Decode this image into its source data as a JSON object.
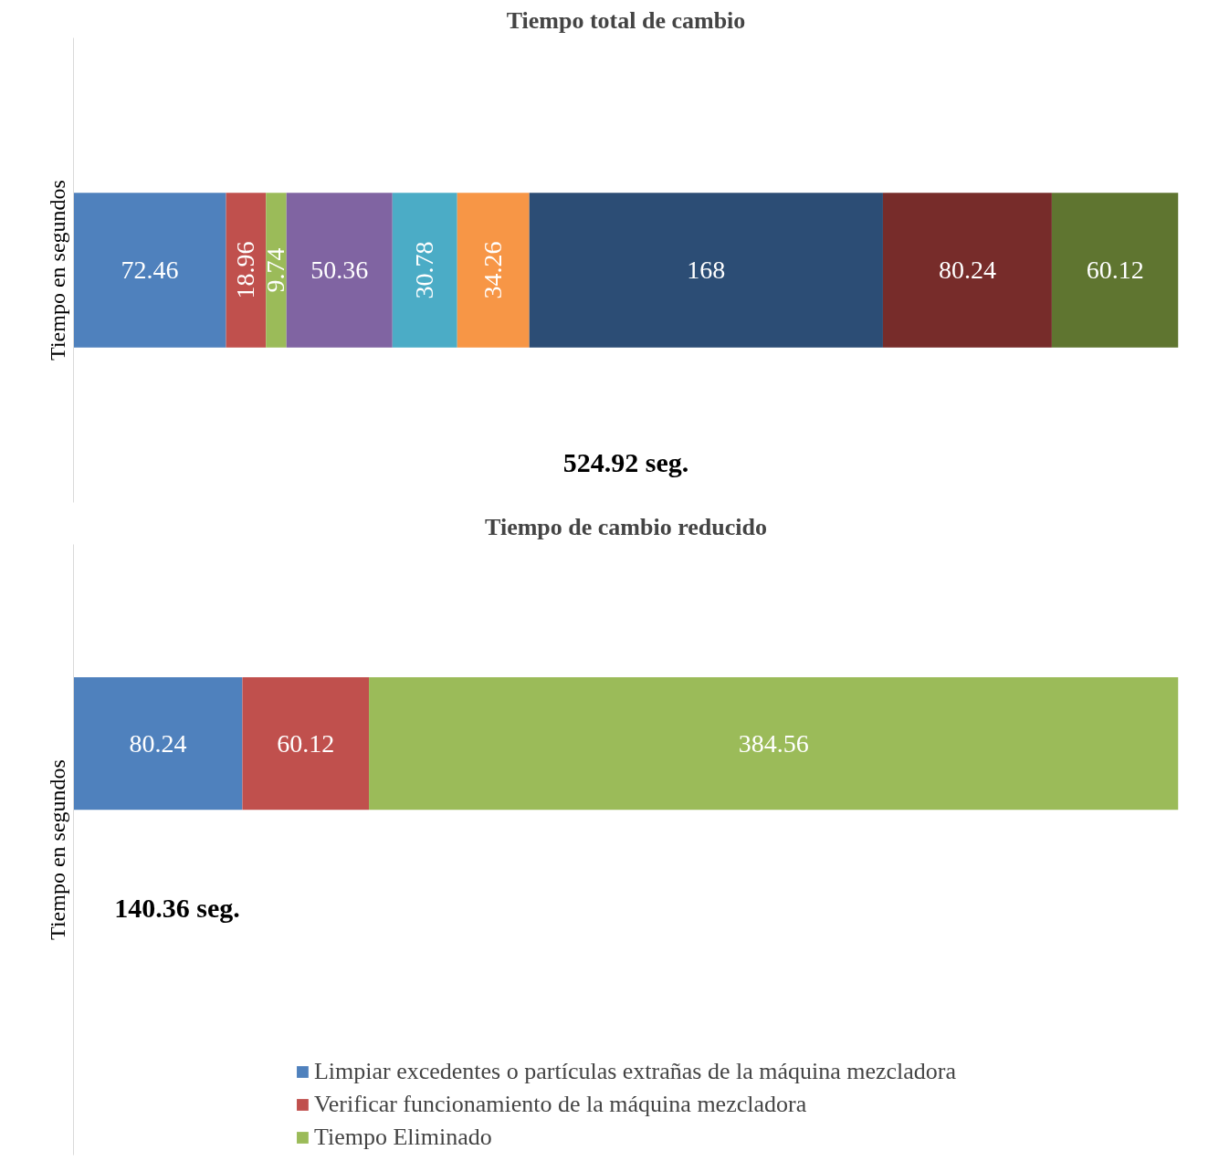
{
  "chart_data": [
    {
      "type": "bar",
      "title": "Tiempo total de cambio",
      "ylabel": "Tiempo en segundos",
      "orientation": "horizontal",
      "stacked": true,
      "categories": [
        null
      ],
      "data_labels": true,
      "tick_labels": false,
      "grid": false,
      "legend": false,
      "series": [
        {
          "color": "#4f81bd",
          "values": [
            72.46
          ]
        },
        {
          "color": "#c0504d",
          "values": [
            18.96
          ]
        },
        {
          "color": "#9bbb59",
          "values": [
            9.74
          ]
        },
        {
          "color": "#8064a2",
          "values": [
            50.36
          ]
        },
        {
          "color": "#4bacc6",
          "values": [
            30.78
          ]
        },
        {
          "color": "#f79646",
          "values": [
            34.26
          ]
        },
        {
          "color": "#2c4d75",
          "values": [
            168
          ]
        },
        {
          "color": "#772c2a",
          "values": [
            80.24
          ]
        },
        {
          "color": "#5f7530",
          "values": [
            60.12
          ]
        }
      ],
      "annotations": [
        "524.92 seg."
      ]
    },
    {
      "type": "bar",
      "title": "Tiempo de cambio reducido",
      "ylabel": "Tiempo en segundos",
      "orientation": "horizontal",
      "stacked": true,
      "categories": [
        null
      ],
      "data_labels": true,
      "tick_labels": false,
      "grid": false,
      "legend": "bottom",
      "series": [
        {
          "name": "Limpiar excedentes o partículas extrañas de la máquina mezcladora",
          "color": "#4f81bd",
          "values": [
            80.24
          ]
        },
        {
          "name": "Verificar funcionamiento de la máquina mezcladora",
          "color": "#c0504d",
          "values": [
            60.12
          ]
        },
        {
          "name": "Tiempo Eliminado",
          "color": "#9bbb59",
          "values": [
            384.56
          ]
        }
      ],
      "annotations": [
        "140.36 seg."
      ]
    }
  ]
}
